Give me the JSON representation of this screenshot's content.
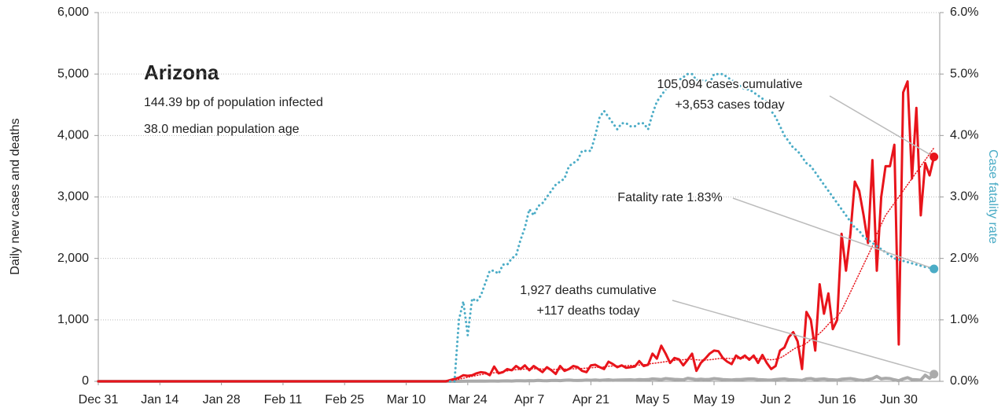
{
  "chart_data": {
    "type": "line",
    "title": "Arizona",
    "subtitle": [
      "144.39 bp of population infected",
      "38.0 median population age"
    ],
    "ylabel": "Daily new cases and deaths",
    "y2label": "Case fatality rate",
    "annotations": {
      "cases": [
        "105,094 cases cumulative",
        "+3,653 cases today"
      ],
      "fatality": [
        "Fatality rate 1.83%"
      ],
      "deaths": [
        "1,927 deaths cumulative",
        "+117 deaths today"
      ]
    },
    "categories": [
      "Dec 31",
      "Jan 1",
      "Jan 2",
      "Jan 3",
      "Jan 4",
      "Jan 5",
      "Jan 6",
      "Jan 7",
      "Jan 8",
      "Jan 9",
      "Jan 10",
      "Jan 11",
      "Jan 12",
      "Jan 13",
      "Jan 14",
      "Jan 15",
      "Jan 16",
      "Jan 17",
      "Jan 18",
      "Jan 19",
      "Jan 20",
      "Jan 21",
      "Jan 22",
      "Jan 23",
      "Jan 24",
      "Jan 25",
      "Jan 26",
      "Jan 27",
      "Jan 28",
      "Jan 29",
      "Jan 30",
      "Jan 31",
      "Feb 1",
      "Feb 2",
      "Feb 3",
      "Feb 4",
      "Feb 5",
      "Feb 6",
      "Feb 7",
      "Feb 8",
      "Feb 9",
      "Feb 10",
      "Feb 11",
      "Feb 12",
      "Feb 13",
      "Feb 14",
      "Feb 15",
      "Feb 16",
      "Feb 17",
      "Feb 18",
      "Feb 19",
      "Feb 20",
      "Feb 21",
      "Feb 22",
      "Feb 23",
      "Feb 24",
      "Feb 25",
      "Feb 26",
      "Feb 27",
      "Feb 28",
      "Feb 29",
      "Mar 1",
      "Mar 2",
      "Mar 3",
      "Mar 4",
      "Mar 5",
      "Mar 6",
      "Mar 7",
      "Mar 8",
      "Mar 9",
      "Mar 10",
      "Mar 11",
      "Mar 12",
      "Mar 13",
      "Mar 14",
      "Mar 15",
      "Mar 16",
      "Mar 17",
      "Mar 18",
      "Mar 19",
      "Mar 20",
      "Mar 21",
      "Mar 22",
      "Mar 23",
      "Mar 24",
      "Mar 25",
      "Mar 26",
      "Mar 27",
      "Mar 28",
      "Mar 29",
      "Mar 30",
      "Mar 31",
      "Apr 1",
      "Apr 2",
      "Apr 3",
      "Apr 4",
      "Apr 5",
      "Apr 6",
      "Apr 7",
      "Apr 8",
      "Apr 9",
      "Apr 10",
      "Apr 11",
      "Apr 12",
      "Apr 13",
      "Apr 14",
      "Apr 15",
      "Apr 16",
      "Apr 17",
      "Apr 18",
      "Apr 19",
      "Apr 20",
      "Apr 21",
      "Apr 22",
      "Apr 23",
      "Apr 24",
      "Apr 25",
      "Apr 26",
      "Apr 27",
      "Apr 28",
      "Apr 29",
      "Apr 30",
      "May 1",
      "May 2",
      "May 3",
      "May 4",
      "May 5",
      "May 6",
      "May 7",
      "May 8",
      "May 9",
      "May 10",
      "May 11",
      "May 12",
      "May 13",
      "May 14",
      "May 15",
      "May 16",
      "May 17",
      "May 18",
      "May 19",
      "May 20",
      "May 21",
      "May 22",
      "May 23",
      "May 24",
      "May 25",
      "May 26",
      "May 27",
      "May 28",
      "May 29",
      "May 30",
      "May 31",
      "Jun 1",
      "Jun 2",
      "Jun 3",
      "Jun 4",
      "Jun 5",
      "Jun 6",
      "Jun 7",
      "Jun 8",
      "Jun 9",
      "Jun 10",
      "Jun 11",
      "Jun 12",
      "Jun 13",
      "Jun 14",
      "Jun 15",
      "Jun 16",
      "Jun 17",
      "Jun 18",
      "Jun 19",
      "Jun 20",
      "Jun 21",
      "Jun 22",
      "Jun 23",
      "Jun 24",
      "Jun 25",
      "Jun 26",
      "Jun 27",
      "Jun 28",
      "Jun 29",
      "Jun 30",
      "Jul 1",
      "Jul 2",
      "Jul 3",
      "Jul 4",
      "Jul 5",
      "Jul 6",
      "Jul 7",
      "Jul 8"
    ],
    "xticks": [
      "Dec 31",
      "Jan 14",
      "Jan 28",
      "Feb 11",
      "Feb 25",
      "Mar 10",
      "Mar 24",
      "Apr 7",
      "Apr 21",
      "May 5",
      "May 19",
      "Jun 2",
      "Jun 16",
      "Jun 30"
    ],
    "series": [
      {
        "color": "#aaaaaa",
        "style": "solid",
        "width": 4,
        "values": [
          0,
          0,
          0,
          0,
          0,
          0,
          0,
          0,
          0,
          0,
          0,
          0,
          0,
          0,
          0,
          0,
          0,
          0,
          0,
          0,
          0,
          0,
          0,
          0,
          0,
          0,
          0,
          0,
          0,
          0,
          0,
          0,
          0,
          0,
          0,
          0,
          0,
          0,
          0,
          0,
          0,
          0,
          0,
          0,
          0,
          0,
          0,
          0,
          0,
          0,
          0,
          0,
          0,
          0,
          0,
          0,
          0,
          0,
          0,
          0,
          0,
          0,
          0,
          0,
          0,
          0,
          0,
          0,
          0,
          0,
          0,
          0,
          0,
          0,
          0,
          0,
          0,
          0,
          0,
          0,
          0,
          1,
          0,
          1,
          2,
          3,
          2,
          5,
          3,
          5,
          5,
          4,
          6,
          8,
          5,
          9,
          10,
          8,
          12,
          10,
          15,
          12,
          10,
          14,
          16,
          12,
          18,
          20,
          15,
          14,
          16,
          20,
          18,
          22,
          15,
          20,
          25,
          18,
          20,
          22,
          24,
          25,
          20,
          30,
          25,
          28,
          40,
          35,
          30,
          45,
          38,
          32,
          30,
          25,
          50,
          40,
          28,
          35,
          30,
          32,
          45,
          38,
          30,
          25,
          22,
          30,
          28,
          35,
          40,
          38,
          30,
          25,
          22,
          20,
          30,
          35,
          40,
          30,
          25,
          20,
          15,
          40,
          45,
          30,
          35,
          40,
          30,
          25,
          20,
          35,
          40,
          45,
          35,
          20,
          15,
          30,
          45,
          80,
          40,
          50,
          45,
          25,
          10,
          40,
          60,
          30,
          25,
          20,
          100,
          50,
          117
        ]
      },
      {
        "color": "#e8141b",
        "style": "dotted-thin",
        "width": 1.5,
        "values": [
          null,
          null,
          null,
          null,
          null,
          null,
          null,
          null,
          null,
          null,
          null,
          null,
          null,
          null,
          null,
          null,
          null,
          null,
          null,
          null,
          null,
          null,
          null,
          null,
          null,
          null,
          null,
          null,
          null,
          null,
          null,
          null,
          null,
          null,
          null,
          null,
          null,
          null,
          null,
          null,
          null,
          null,
          null,
          null,
          null,
          null,
          null,
          null,
          null,
          null,
          null,
          null,
          null,
          null,
          null,
          null,
          null,
          null,
          null,
          null,
          null,
          null,
          null,
          null,
          null,
          null,
          null,
          null,
          null,
          null,
          null,
          null,
          null,
          null,
          null,
          null,
          null,
          null,
          null,
          null,
          10,
          20,
          35,
          50,
          65,
          80,
          95,
          110,
          120,
          125,
          140,
          145,
          160,
          170,
          180,
          190,
          195,
          200,
          205,
          205,
          205,
          200,
          200,
          195,
          195,
          195,
          200,
          200,
          205,
          205,
          210,
          215,
          220,
          225,
          230,
          235,
          245,
          250,
          250,
          255,
          255,
          260,
          260,
          265,
          270,
          280,
          290,
          300,
          310,
          320,
          330,
          340,
          350,
          350,
          360,
          360,
          350,
          345,
          345,
          350,
          360,
          370,
          375,
          375,
          370,
          370,
          375,
          380,
          380,
          380,
          370,
          365,
          360,
          350,
          360,
          380,
          420,
          470,
          520,
          560,
          580,
          620,
          680,
          720,
          780,
          850,
          930,
          1000,
          1050,
          1150,
          1300,
          1450,
          1600,
          1750,
          1900,
          2050,
          2200,
          2400,
          2550,
          2700,
          2800,
          2900,
          3000,
          3100,
          3200,
          3300,
          3400,
          3500,
          3600,
          3700,
          3800
        ]
      },
      {
        "color": "#e8141b",
        "style": "solid",
        "width": 3,
        "values": [
          0,
          0,
          0,
          0,
          0,
          0,
          0,
          0,
          0,
          0,
          0,
          0,
          0,
          0,
          0,
          0,
          0,
          0,
          0,
          0,
          0,
          0,
          0,
          0,
          0,
          0,
          0,
          0,
          0,
          0,
          0,
          0,
          0,
          0,
          0,
          0,
          0,
          0,
          0,
          0,
          0,
          0,
          0,
          0,
          0,
          0,
          0,
          0,
          0,
          0,
          0,
          0,
          0,
          0,
          0,
          0,
          0,
          0,
          0,
          0,
          0,
          0,
          0,
          0,
          0,
          0,
          0,
          0,
          0,
          0,
          0,
          0,
          0,
          0,
          0,
          0,
          0,
          0,
          0,
          0,
          20,
          40,
          60,
          100,
          90,
          100,
          130,
          150,
          140,
          100,
          240,
          130,
          150,
          200,
          180,
          250,
          200,
          260,
          180,
          250,
          200,
          150,
          230,
          180,
          120,
          250,
          170,
          200,
          250,
          230,
          170,
          150,
          260,
          270,
          230,
          200,
          320,
          280,
          230,
          260,
          220,
          230,
          240,
          330,
          250,
          270,
          450,
          370,
          580,
          450,
          300,
          380,
          360,
          260,
          350,
          450,
          170,
          300,
          370,
          450,
          500,
          490,
          380,
          320,
          280,
          420,
          370,
          420,
          350,
          420,
          300,
          430,
          300,
          200,
          250,
          500,
          550,
          720,
          800,
          650,
          200,
          1130,
          1000,
          500,
          1580,
          1100,
          1430,
          850,
          1000,
          2400,
          1800,
          2400,
          3250,
          3100,
          2700,
          2250,
          3600,
          1800,
          3000,
          3500,
          3500,
          3850,
          600,
          4700,
          4880,
          3300,
          4450,
          2700,
          3550,
          3350,
          3653
        ]
      },
      {
        "color": "#4bacc6",
        "style": "dotted",
        "width": 3,
        "axis": "y2",
        "values": [
          null,
          null,
          null,
          null,
          null,
          null,
          null,
          null,
          null,
          null,
          null,
          null,
          null,
          null,
          null,
          null,
          null,
          null,
          null,
          null,
          null,
          null,
          null,
          null,
          null,
          null,
          null,
          null,
          null,
          null,
          null,
          null,
          null,
          null,
          null,
          null,
          null,
          null,
          null,
          null,
          null,
          null,
          null,
          null,
          null,
          null,
          null,
          null,
          null,
          null,
          null,
          null,
          null,
          null,
          null,
          null,
          null,
          null,
          null,
          null,
          null,
          null,
          null,
          null,
          null,
          null,
          null,
          null,
          null,
          null,
          null,
          null,
          null,
          null,
          null,
          null,
          null,
          null,
          null,
          null,
          0,
          0,
          1.0,
          1.3,
          0.75,
          1.35,
          1.3,
          1.4,
          1.6,
          1.8,
          1.8,
          1.75,
          1.9,
          1.9,
          2.0,
          2.05,
          2.3,
          2.5,
          2.8,
          2.7,
          2.85,
          2.9,
          3.0,
          3.1,
          3.2,
          3.25,
          3.3,
          3.5,
          3.55,
          3.6,
          3.75,
          3.75,
          3.75,
          4.0,
          4.3,
          4.4,
          4.3,
          4.2,
          4.1,
          4.2,
          4.2,
          4.15,
          4.15,
          4.2,
          4.2,
          4.1,
          4.35,
          4.55,
          4.65,
          4.75,
          4.8,
          4.85,
          4.9,
          4.95,
          5.0,
          5.0,
          4.9,
          4.9,
          4.9,
          4.85,
          5.0,
          5.0,
          5.0,
          4.95,
          4.9,
          4.85,
          4.8,
          4.75,
          4.75,
          4.7,
          4.65,
          4.6,
          4.55,
          4.4,
          4.3,
          4.15,
          4.0,
          3.9,
          3.8,
          3.75,
          3.65,
          3.55,
          3.5,
          3.4,
          3.3,
          3.2,
          3.1,
          3.0,
          2.9,
          2.8,
          2.7,
          2.6,
          2.5,
          2.45,
          2.35,
          2.3,
          2.25,
          2.2,
          2.15,
          2.1,
          2.05,
          2.0,
          1.98,
          1.96,
          1.94,
          1.92,
          1.9,
          1.88,
          1.86,
          1.85,
          1.83
        ]
      }
    ],
    "ylim": [
      0,
      6000
    ],
    "yticks": [
      0,
      {
        "value": 1000,
        "label": "1,000"
      },
      {
        "value": 2000,
        "label": "2,000"
      },
      {
        "value": 3000,
        "label": "3,000"
      },
      {
        "value": 4000,
        "label": "4,000"
      },
      {
        "value": 5000,
        "label": "5,000"
      },
      {
        "value": 6000,
        "label": "6,000"
      }
    ],
    "y2lim": [
      0,
      6
    ],
    "y2ticks": [
      {
        "value": 0,
        "label": "0.0%"
      },
      {
        "value": 1,
        "label": "1.0%"
      },
      {
        "value": 2,
        "label": "2.0%"
      },
      {
        "value": 3,
        "label": "3.0%"
      },
      {
        "value": 4,
        "label": "4.0%"
      },
      {
        "value": 5,
        "label": "5.0%"
      },
      {
        "value": 6,
        "label": "6.0%"
      }
    ],
    "y2color": "#4bacc6",
    "grid": true
  }
}
